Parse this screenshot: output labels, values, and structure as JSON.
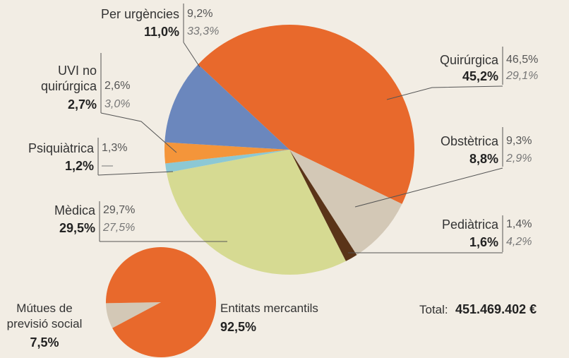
{
  "chart_data": [
    {
      "type": "pie",
      "categories": [
        "Quirúrgica",
        "Obstètrica",
        "Pediàtrica",
        "Mèdica",
        "Psiquiàtrica",
        "UVI no quirúrgica",
        "Per urgències"
      ],
      "series": [
        {
          "values": [
            45.2,
            8.8,
            1.6,
            29.5,
            1.2,
            2.7,
            11.0
          ],
          "value_labels": [
            "45,2%",
            "8,8%",
            "1,6%",
            "29,5%",
            "1,2%",
            "2,7%",
            "11,0%"
          ],
          "colors": [
            "#e8692c",
            "#d3c8b6",
            "#5a3418",
            "#d6da92",
            "#8cc8d4",
            "#f4953a",
            "#6b87bd"
          ]
        },
        {
          "values": [
            46.5,
            9.3,
            1.4,
            29.7,
            1.3,
            2.6,
            9.2
          ],
          "value_labels": [
            "46,5%",
            "9,3%",
            "1,4%",
            "29,7%",
            "1,3%",
            "2,6%",
            "9,2%"
          ]
        },
        {
          "values": [
            29.1,
            2.9,
            4.2,
            27.5,
            null,
            3.0,
            33.3
          ],
          "value_labels": [
            "29,1%",
            "2,9%",
            "4,2%",
            "27,5%",
            "—",
            "3,0%",
            "33,3%"
          ]
        }
      ]
    },
    {
      "type": "pie",
      "categories": [
        "Mútues de previsió social",
        "Entitats mercantils"
      ],
      "values": [
        7.5,
        92.5
      ],
      "value_labels": [
        "7,5%",
        "92,5%"
      ],
      "colors": [
        "#d3c8b6",
        "#e8692c"
      ]
    }
  ],
  "total": {
    "label": "Total:",
    "value": 451469402,
    "value_label": "451.469.402 €"
  }
}
